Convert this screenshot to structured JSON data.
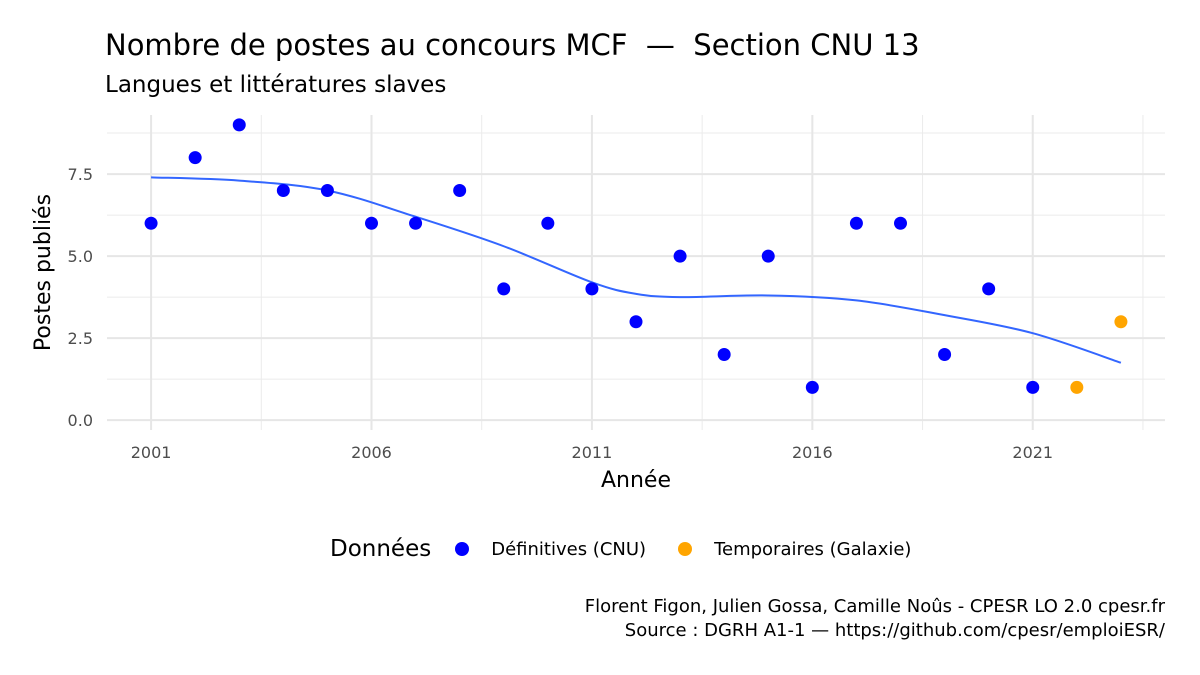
{
  "title": "Nombre de postes au concours MCF  —  Section CNU 13",
  "subtitle": "Langues et littératures slaves",
  "legend": {
    "title": "Données",
    "items": [
      {
        "label": "Définitives (CNU)",
        "color": "#0000ff"
      },
      {
        "label": "Temporaires (Galaxie)",
        "color": "#ffa500"
      }
    ]
  },
  "caption": {
    "line1": "Florent Figon, Julien Gossa, Camille Noûs - CPESR LO 2.0 cpesr.fr",
    "line2": "Source : DGRH A1-1 — https://github.com/cpesr/emploiESR/"
  },
  "chart_data": {
    "type": "scatter",
    "xlabel": "Année",
    "ylabel": "Postes publiés",
    "xlim": [
      2000,
      2024
    ],
    "ylim": [
      -0.3,
      9.3
    ],
    "x_ticks": [
      2001,
      2006,
      2011,
      2016,
      2021
    ],
    "y_ticks": [
      0.0,
      2.5,
      5.0,
      7.5
    ],
    "y_tick_labels": [
      "0.0",
      "2.5",
      "5.0",
      "7.5"
    ],
    "grid": true,
    "series": [
      {
        "name": "Définitives (CNU)",
        "color": "#0000ff",
        "x": [
          2001,
          2002,
          2003,
          2004,
          2005,
          2006,
          2007,
          2008,
          2009,
          2010,
          2011,
          2012,
          2013,
          2014,
          2015,
          2016,
          2017,
          2018,
          2019,
          2020,
          2021
        ],
        "y": [
          6,
          8,
          9,
          7,
          7,
          6,
          6,
          7,
          4,
          6,
          4,
          3,
          5,
          2,
          5,
          1,
          6,
          6,
          2,
          4,
          1
        ]
      },
      {
        "name": "Temporaires (Galaxie)",
        "color": "#ffa500",
        "x": [
          2022,
          2023
        ],
        "y": [
          1,
          3
        ]
      }
    ],
    "trend": {
      "color": "#3366ff",
      "x": [
        2001,
        2003,
        2005,
        2007,
        2009,
        2011,
        2012,
        2013,
        2015,
        2017,
        2019,
        2021,
        2023
      ],
      "y": [
        7.4,
        7.3,
        7.0,
        6.2,
        5.3,
        4.2,
        3.85,
        3.75,
        3.8,
        3.65,
        3.2,
        2.65,
        1.75
      ]
    }
  }
}
